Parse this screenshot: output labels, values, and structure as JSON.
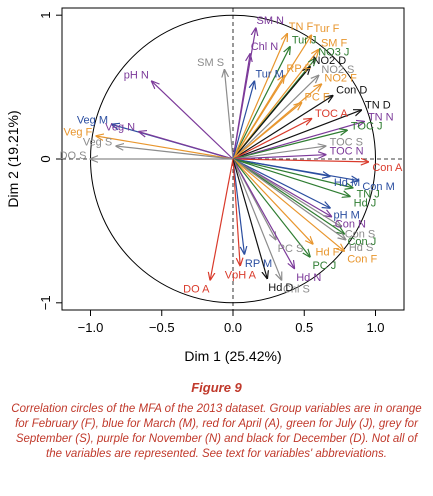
{
  "chart_data": {
    "type": "scatter",
    "title": "",
    "xlabel": "Dim 1 (25.42%)",
    "ylabel": "Dim 2 (19.21%)",
    "xlim": [
      -1.2,
      1.2
    ],
    "ylim": [
      -1.05,
      1.05
    ],
    "xticks": [
      -1.0,
      -0.5,
      0.0,
      0.5,
      1.0
    ],
    "xtick_labels": [
      "−1.0",
      "−0.5",
      "0.0",
      "0.5",
      "1.0"
    ],
    "yticks": [
      -1,
      0,
      1
    ],
    "ytick_labels": [
      "−1",
      "0",
      "1"
    ],
    "unit_circle": true,
    "colors": {
      "F": "#e8962e",
      "M": "#2b4ea0",
      "A": "#d93a2b",
      "J": "#2f7d32",
      "S": "#8c8c8c",
      "N": "#7c3a9a",
      "D": "#111111"
    },
    "vectors": [
      {
        "label": "SM N",
        "group": "N",
        "x": 0.16,
        "y": 0.91
      },
      {
        "label": "Tur F",
        "group": "F",
        "x": 0.55,
        "y": 0.86
      },
      {
        "label": "Tur J",
        "group": "J",
        "x": 0.4,
        "y": 0.78
      },
      {
        "label": "TN F",
        "group": "F",
        "x": 0.38,
        "y": 0.87
      },
      {
        "label": "SM F",
        "group": "F",
        "x": 0.6,
        "y": 0.76
      },
      {
        "label": "Chl N",
        "group": "N",
        "x": 0.12,
        "y": 0.73
      },
      {
        "label": "NO3 J",
        "group": "J",
        "x": 0.58,
        "y": 0.7
      },
      {
        "label": "NO2 D",
        "group": "D",
        "x": 0.54,
        "y": 0.64
      },
      {
        "label": "SM S",
        "group": "S",
        "x": -0.06,
        "y": 0.62
      },
      {
        "label": "Tur M",
        "group": "M",
        "x": 0.15,
        "y": 0.54
      },
      {
        "label": "RP F",
        "group": "F",
        "x": 0.36,
        "y": 0.58
      },
      {
        "label": "NO2 S",
        "group": "S",
        "x": 0.6,
        "y": 0.58
      },
      {
        "label": "NO2 F",
        "group": "F",
        "x": 0.62,
        "y": 0.52
      },
      {
        "label": "Con D",
        "group": "D",
        "x": 0.7,
        "y": 0.44
      },
      {
        "label": "pH N",
        "group": "N",
        "x": -0.57,
        "y": 0.54
      },
      {
        "label": "PC F",
        "group": "F",
        "x": 0.48,
        "y": 0.39
      },
      {
        "label": "TN D",
        "group": "D",
        "x": 0.9,
        "y": 0.34
      },
      {
        "label": "TOC A",
        "group": "A",
        "x": 0.55,
        "y": 0.28
      },
      {
        "label": "TN N",
        "group": "N",
        "x": 0.92,
        "y": 0.26
      },
      {
        "label": "TOC J",
        "group": "J",
        "x": 0.8,
        "y": 0.2
      },
      {
        "label": "Veg M",
        "group": "M",
        "x": -0.85,
        "y": 0.24
      },
      {
        "label": "Veg N",
        "group": "N",
        "x": -0.66,
        "y": 0.19
      },
      {
        "label": "Veg F",
        "group": "F",
        "x": -0.96,
        "y": 0.16
      },
      {
        "label": "Veg S",
        "group": "S",
        "x": -0.82,
        "y": 0.09
      },
      {
        "label": "TOC S",
        "group": "S",
        "x": 0.65,
        "y": 0.09
      },
      {
        "label": "TOC N",
        "group": "N",
        "x": 0.65,
        "y": 0.03
      },
      {
        "label": "Con A",
        "group": "A",
        "x": 0.95,
        "y": -0.02
      },
      {
        "label": "DO S",
        "group": "S",
        "x": -1.0,
        "y": 0.0
      },
      {
        "label": "Hd M",
        "group": "M",
        "x": 0.68,
        "y": -0.12
      },
      {
        "label": "Con M",
        "group": "M",
        "x": 0.88,
        "y": -0.15
      },
      {
        "label": "TN J",
        "group": "J",
        "x": 0.84,
        "y": -0.2
      },
      {
        "label": "Hd J",
        "group": "J",
        "x": 0.82,
        "y": -0.26
      },
      {
        "label": "pH M",
        "group": "M",
        "x": 0.68,
        "y": -0.34
      },
      {
        "label": "Con N",
        "group": "N",
        "x": 0.69,
        "y": -0.4
      },
      {
        "label": "Con S",
        "group": "S",
        "x": 0.76,
        "y": -0.47
      },
      {
        "label": "Con J",
        "group": "J",
        "x": 0.78,
        "y": -0.52
      },
      {
        "label": "Hd S",
        "group": "S",
        "x": 0.79,
        "y": -0.56
      },
      {
        "label": "Hd F",
        "group": "F",
        "x": 0.56,
        "y": -0.59
      },
      {
        "label": "Con F",
        "group": "F",
        "x": 0.78,
        "y": -0.64
      },
      {
        "label": "PC S",
        "group": "S",
        "x": 0.3,
        "y": -0.56
      },
      {
        "label": "PC J",
        "group": "J",
        "x": 0.54,
        "y": -0.68
      },
      {
        "label": "RP M",
        "group": "M",
        "x": 0.08,
        "y": -0.66
      },
      {
        "label": "Hd N",
        "group": "N",
        "x": 0.43,
        "y": -0.76
      },
      {
        "label": "Chl S",
        "group": "S",
        "x": 0.34,
        "y": -0.84
      },
      {
        "label": "VpH A",
        "group": "A",
        "x": 0.05,
        "y": -0.74
      },
      {
        "label": "Hd D",
        "group": "D",
        "x": 0.24,
        "y": -0.83
      },
      {
        "label": "DO A",
        "group": "A",
        "x": -0.16,
        "y": -0.84
      }
    ]
  },
  "caption": {
    "title": "Figure 9",
    "text": "Correlation circles of the MFA of the 2013 dataset. Group variables are in orange for February (F), blue for March (M), red for April (A), green for July (J), grey for September (S), purple for November (N) and black for December (D). Not all of the variables are represented. See text for variables' abbreviations."
  }
}
